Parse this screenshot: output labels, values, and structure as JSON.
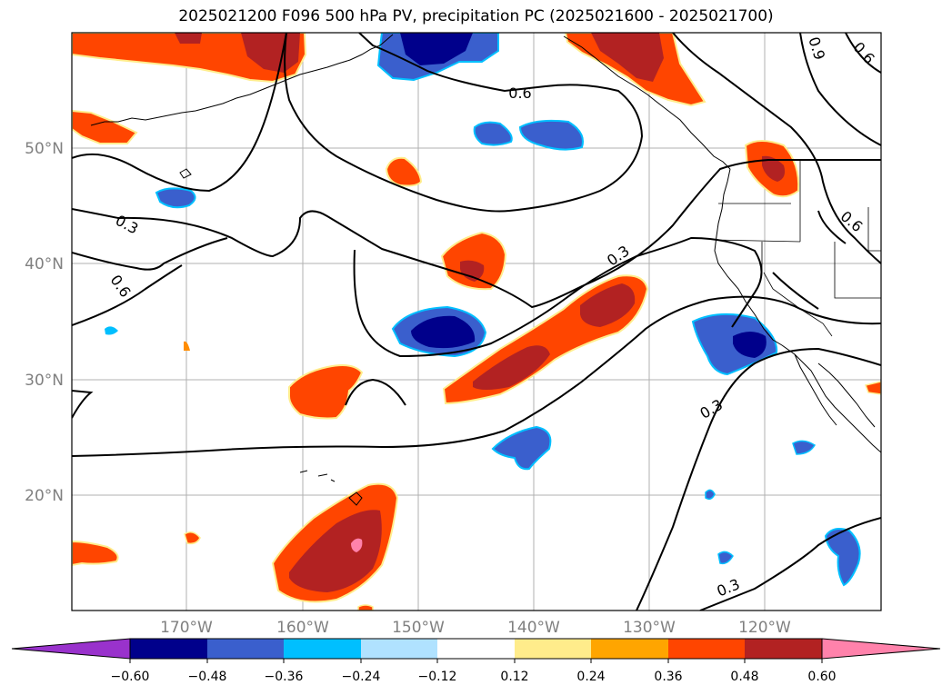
{
  "title": "2025021200 F096 500 hPa PV, precipitation PC (2025021600 - 2025021700)",
  "lat_labels": [
    "50°N",
    "40°N",
    "30°N",
    "20°N"
  ],
  "lon_labels": [
    "170°W",
    "160°W",
    "150°W",
    "140°W",
    "130°W",
    "120°W"
  ],
  "contour_labels": [
    "0.6",
    "0.9",
    "0.6",
    "0.3",
    "0.6",
    "0.3",
    "0.6",
    "0.3",
    "0.3"
  ],
  "colorbar": {
    "ticks": [
      "−0.60",
      "−0.48",
      "−0.36",
      "−0.24",
      "−0.12",
      "0.12",
      "0.24",
      "0.36",
      "0.48",
      "0.60"
    ],
    "colors": [
      "#9932CC",
      "#00008B",
      "#3A5FCD",
      "#00BFFF",
      "#B0E2FF",
      "#FFFFFF",
      "#FFEC8B",
      "#FFA500",
      "#FF4500",
      "#B22222",
      "#FF82AB"
    ]
  },
  "colors": {
    "grid": "#b0b0b0",
    "contour": "#000000",
    "tick_label": "#808080"
  }
}
